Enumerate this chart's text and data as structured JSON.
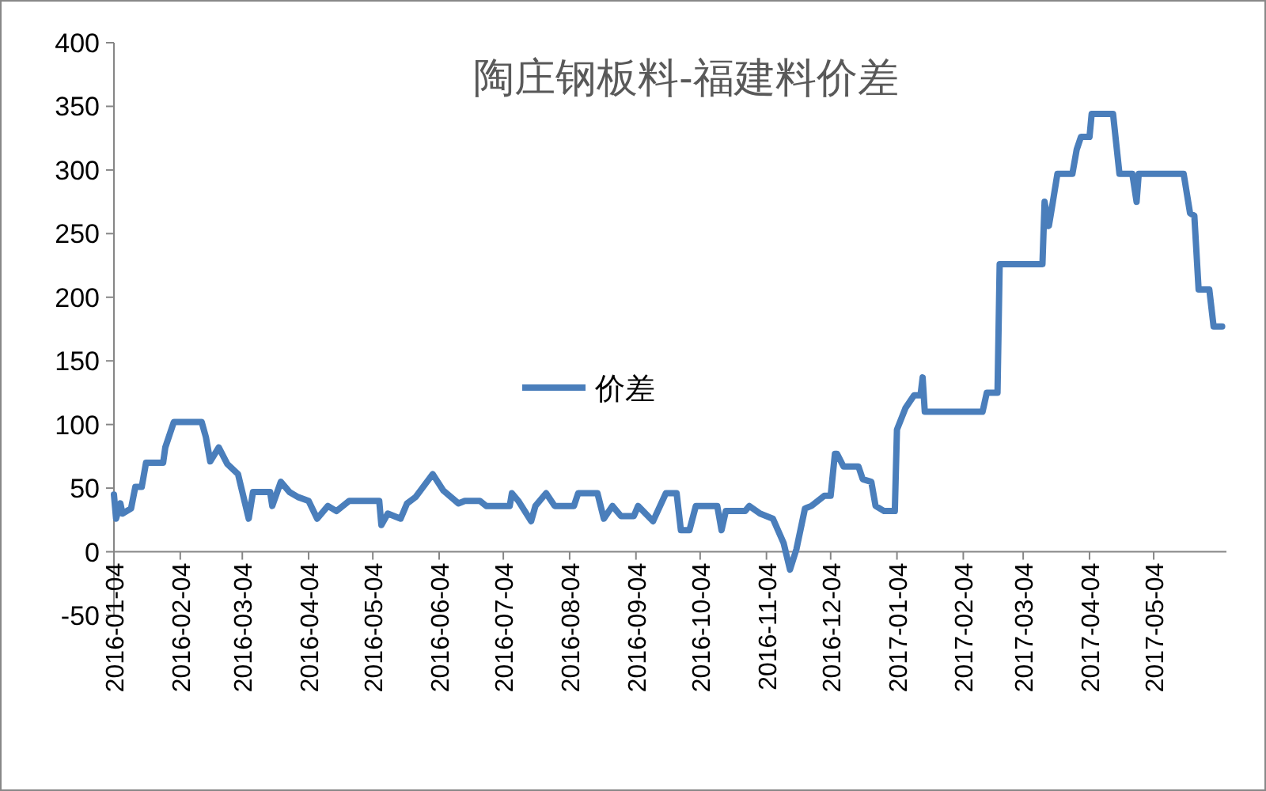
{
  "chart_data": {
    "type": "line",
    "title": "陶庄钢板料-福建料价差",
    "x": [
      "2016-01-04",
      "2016-01-05",
      "2016-01-07",
      "2016-01-08",
      "2016-01-12",
      "2016-01-14",
      "2016-01-17",
      "2016-01-19",
      "2016-01-27",
      "2016-01-28",
      "2016-02-01",
      "2016-02-14",
      "2016-02-16",
      "2016-02-18",
      "2016-02-22",
      "2016-02-26",
      "2016-03-02",
      "2016-03-04",
      "2016-03-07",
      "2016-03-09",
      "2016-03-17",
      "2016-03-18",
      "2016-03-22",
      "2016-03-26",
      "2016-03-30",
      "2016-04-04",
      "2016-04-08",
      "2016-04-13",
      "2016-04-17",
      "2016-04-23",
      "2016-05-07",
      "2016-05-08",
      "2016-05-11",
      "2016-05-17",
      "2016-05-20",
      "2016-05-24",
      "2016-05-28",
      "2016-06-01",
      "2016-06-06",
      "2016-06-13",
      "2016-06-16",
      "2016-06-23",
      "2016-06-26",
      "2016-07-07",
      "2016-07-08",
      "2016-07-11",
      "2016-07-17",
      "2016-07-19",
      "2016-07-24",
      "2016-07-28",
      "2016-08-06",
      "2016-08-08",
      "2016-08-17",
      "2016-08-20",
      "2016-08-24",
      "2016-08-28",
      "2016-09-03",
      "2016-09-05",
      "2016-09-12",
      "2016-09-18",
      "2016-09-23",
      "2016-09-25",
      "2016-09-29",
      "2016-10-02",
      "2016-10-12",
      "2016-10-14",
      "2016-10-16",
      "2016-10-25",
      "2016-10-27",
      "2016-11-01",
      "2016-11-07",
      "2016-11-12",
      "2016-11-15",
      "2016-11-18",
      "2016-11-22",
      "2016-11-25",
      "2016-12-01",
      "2016-12-04",
      "2016-12-06",
      "2016-12-07",
      "2016-12-10",
      "2016-12-17",
      "2016-12-19",
      "2016-12-23",
      "2016-12-25",
      "2016-12-29",
      "2017-01-03",
      "2017-01-04",
      "2017-01-08",
      "2017-01-12",
      "2017-01-15",
      "2017-01-16",
      "2017-01-17",
      "2017-02-13",
      "2017-02-15",
      "2017-02-20",
      "2017-02-21",
      "2017-03-13",
      "2017-03-14",
      "2017-03-16",
      "2017-03-17",
      "2017-03-20",
      "2017-03-27",
      "2017-03-29",
      "2017-03-31",
      "2017-04-04",
      "2017-04-05",
      "2017-04-15",
      "2017-04-18",
      "2017-04-24",
      "2017-04-26",
      "2017-04-27",
      "2017-05-18",
      "2017-05-21",
      "2017-05-23",
      "2017-05-25",
      "2017-05-30",
      "2017-06-01",
      "2017-06-05"
    ],
    "series": [
      {
        "name": "价差",
        "color": "#4a7ebb",
        "values": [
          45,
          26,
          38,
          30,
          34,
          51,
          51,
          70,
          70,
          82,
          102,
          102,
          90,
          71,
          82,
          69,
          61,
          47,
          26,
          47,
          47,
          36,
          55,
          47,
          43,
          40,
          26,
          36,
          32,
          40,
          40,
          21,
          30,
          26,
          38,
          43,
          52,
          61,
          48,
          38,
          40,
          40,
          36,
          36,
          46,
          40,
          24,
          36,
          46,
          36,
          36,
          46,
          46,
          26,
          36,
          28,
          28,
          36,
          24,
          46,
          46,
          17,
          17,
          36,
          36,
          17,
          32,
          32,
          36,
          30,
          26,
          7,
          -14,
          2,
          34,
          36,
          44,
          44,
          77,
          77,
          67,
          67,
          57,
          55,
          36,
          32,
          32,
          96,
          113,
          123,
          123,
          137,
          110,
          110,
          125,
          125,
          226,
          226,
          275,
          256,
          266,
          297,
          297,
          316,
          326,
          326,
          344,
          344,
          297,
          297,
          275,
          297,
          297,
          266,
          264,
          206,
          206,
          177,
          177
        ]
      }
    ],
    "xlim": [
      "2016-01-04",
      "2017-06-07"
    ],
    "xticks": [
      "2016-01-04",
      "2016-02-04",
      "2016-03-04",
      "2016-04-04",
      "2016-05-04",
      "2016-06-04",
      "2016-07-04",
      "2016-08-04",
      "2016-09-04",
      "2016-10-04",
      "2016-11-04",
      "2016-12-04",
      "2017-01-04",
      "2017-02-04",
      "2017-03-04",
      "2017-04-04",
      "2017-05-04"
    ],
    "ylim": [
      -50,
      400
    ],
    "yticks": [
      -50,
      0,
      50,
      100,
      150,
      200,
      250,
      300,
      350,
      400
    ],
    "grid": false,
    "legend": "center",
    "marker": "none",
    "line_style": "solid"
  }
}
